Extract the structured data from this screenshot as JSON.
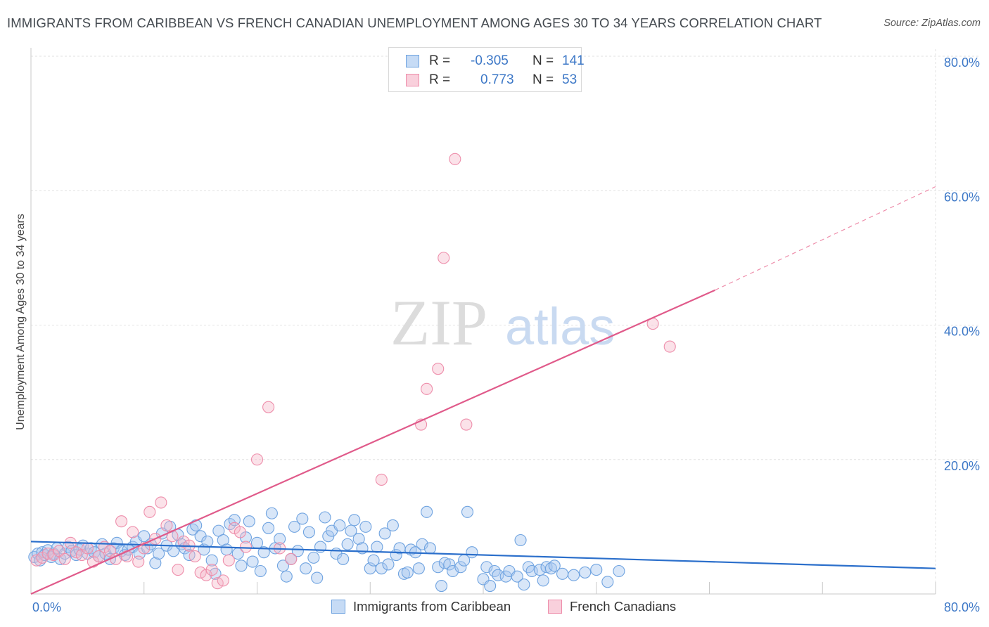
{
  "title": "IMMIGRANTS FROM CARIBBEAN VS FRENCH CANADIAN UNEMPLOYMENT AMONG AGES 30 TO 34 YEARS CORRELATION CHART",
  "source": "Source: ZipAtlas.com",
  "watermark": {
    "zip": "ZIP",
    "atlas": "atlas"
  },
  "legend": {
    "r_label": "R =",
    "n_label": "N =",
    "rows": [
      {
        "name": "Immigrants from Caribbean",
        "r": "-0.305",
        "n": "141",
        "color": "#a8c8ef"
      },
      {
        "name": "French Canadians",
        "r": "0.773",
        "n": "53",
        "color": "#f4b6c8"
      }
    ]
  },
  "chart_data": {
    "type": "scatter",
    "title": "IMMIGRANTS FROM CARIBBEAN VS FRENCH CANADIAN UNEMPLOYMENT AMONG AGES 30 TO 34 YEARS CORRELATION CHART",
    "xlabel": "",
    "ylabel": "Unemployment Among Ages 30 to 34 years",
    "xlim": [
      0,
      80
    ],
    "ylim": [
      0,
      80
    ],
    "x_tick_labels": [
      "0.0%",
      "80.0%"
    ],
    "y_tick_labels": [
      "20.0%",
      "40.0%",
      "60.0%",
      "80.0%"
    ],
    "y_ticks": [
      20,
      40,
      60,
      80
    ],
    "grid": true,
    "series": [
      {
        "name": "Immigrants from Caribbean",
        "color": "#6fa3e0",
        "trend": {
          "x0": 0,
          "y0": 7.8,
          "x1": 80,
          "y1": 3.8
        },
        "points": [
          [
            0.3,
            5.5
          ],
          [
            0.6,
            6
          ],
          [
            0.8,
            5
          ],
          [
            1,
            6.2
          ],
          [
            1.2,
            5.8
          ],
          [
            1.5,
            6.5
          ],
          [
            1.8,
            5.5
          ],
          [
            2,
            6
          ],
          [
            2.3,
            6.8
          ],
          [
            2.6,
            5.2
          ],
          [
            3,
            6
          ],
          [
            3.3,
            7
          ],
          [
            3.6,
            6.4
          ],
          [
            4,
            5.8
          ],
          [
            4.3,
            6.6
          ],
          [
            4.6,
            7.2
          ],
          [
            5,
            6
          ],
          [
            5.3,
            6.8
          ],
          [
            5.6,
            6.2
          ],
          [
            6,
            5.6
          ],
          [
            6.3,
            7.4
          ],
          [
            6.6,
            6
          ],
          [
            7,
            5.2
          ],
          [
            7.3,
            6.8
          ],
          [
            7.6,
            7.6
          ],
          [
            8,
            6.4
          ],
          [
            8.3,
            5.8
          ],
          [
            8.6,
            6.6
          ],
          [
            9,
            7
          ],
          [
            9.3,
            7.8
          ],
          [
            9.6,
            6
          ],
          [
            10,
            8.6
          ],
          [
            10.3,
            6.8
          ],
          [
            10.6,
            7.4
          ],
          [
            11,
            4.6
          ],
          [
            11.3,
            6
          ],
          [
            11.6,
            9
          ],
          [
            12,
            7.2
          ],
          [
            12.3,
            10
          ],
          [
            12.6,
            6.4
          ],
          [
            13,
            8.8
          ],
          [
            13.3,
            7.4
          ],
          [
            13.6,
            6.8
          ],
          [
            14,
            5.8
          ],
          [
            14.3,
            9.6
          ],
          [
            14.6,
            10.2
          ],
          [
            15,
            8.6
          ],
          [
            15.3,
            6.6
          ],
          [
            15.6,
            7.8
          ],
          [
            16,
            5
          ],
          [
            16.3,
            3
          ],
          [
            16.6,
            9.4
          ],
          [
            17,
            8
          ],
          [
            17.3,
            6.6
          ],
          [
            17.6,
            10.4
          ],
          [
            18,
            11
          ],
          [
            18.3,
            6
          ],
          [
            18.6,
            4.2
          ],
          [
            19,
            8.4
          ],
          [
            19.3,
            10.8
          ],
          [
            19.6,
            4.8
          ],
          [
            20,
            7.6
          ],
          [
            20.3,
            3.4
          ],
          [
            20.6,
            6.2
          ],
          [
            21,
            9.8
          ],
          [
            21.3,
            12
          ],
          [
            21.6,
            6.8
          ],
          [
            22,
            8.2
          ],
          [
            22.3,
            4.2
          ],
          [
            22.6,
            2.6
          ],
          [
            23,
            5.2
          ],
          [
            23.3,
            10
          ],
          [
            23.6,
            6.4
          ],
          [
            24,
            11.2
          ],
          [
            24.3,
            3.8
          ],
          [
            24.6,
            9.2
          ],
          [
            25,
            5.4
          ],
          [
            25.3,
            2.4
          ],
          [
            25.6,
            7
          ],
          [
            26,
            11.4
          ],
          [
            26.3,
            8.6
          ],
          [
            26.6,
            9.4
          ],
          [
            27,
            6
          ],
          [
            27.3,
            10.2
          ],
          [
            27.6,
            5.2
          ],
          [
            28,
            7.4
          ],
          [
            28.3,
            9.4
          ],
          [
            28.6,
            11
          ],
          [
            29,
            8.2
          ],
          [
            29.3,
            6.8
          ],
          [
            29.6,
            10
          ],
          [
            30,
            3.8
          ],
          [
            30.3,
            5
          ],
          [
            30.6,
            7
          ],
          [
            31,
            3.8
          ],
          [
            31.3,
            9
          ],
          [
            31.6,
            4.4
          ],
          [
            32,
            10.2
          ],
          [
            32.3,
            5.8
          ],
          [
            32.6,
            6.8
          ],
          [
            33,
            3
          ],
          [
            33.3,
            3.2
          ],
          [
            33.6,
            6.6
          ],
          [
            34,
            6.2
          ],
          [
            34.3,
            3.8
          ],
          [
            34.6,
            7.4
          ],
          [
            35,
            12.2
          ],
          [
            35.3,
            6.8
          ],
          [
            36,
            4
          ],
          [
            36.3,
            1.2
          ],
          [
            36.6,
            4.6
          ],
          [
            37,
            4.4
          ],
          [
            37.3,
            3.4
          ],
          [
            38,
            4
          ],
          [
            38.3,
            5
          ],
          [
            38.6,
            12.2
          ],
          [
            39,
            6.2
          ],
          [
            40,
            2.2
          ],
          [
            40.3,
            4
          ],
          [
            40.6,
            1.2
          ],
          [
            41,
            3.4
          ],
          [
            41.3,
            2.8
          ],
          [
            42,
            2.6
          ],
          [
            42.3,
            3.4
          ],
          [
            43,
            2.6
          ],
          [
            43.3,
            8
          ],
          [
            43.6,
            1.4
          ],
          [
            44,
            4
          ],
          [
            44.3,
            3.4
          ],
          [
            45,
            3.6
          ],
          [
            45.3,
            2
          ],
          [
            45.6,
            4
          ],
          [
            46,
            3.8
          ],
          [
            46.3,
            4.2
          ],
          [
            47,
            3
          ],
          [
            48,
            2.8
          ],
          [
            49,
            3.2
          ],
          [
            50,
            3.6
          ],
          [
            51,
            1.8
          ],
          [
            52,
            3.4
          ]
        ]
      },
      {
        "name": "French Canadians",
        "color": "#ee8eab",
        "trend": {
          "x0": 0,
          "y0": 0,
          "x1": 60.5,
          "y1": 45.2,
          "dashed_to_x": 80,
          "dashed_to_y": 60.6
        },
        "points": [
          [
            0.5,
            5
          ],
          [
            1,
            5.4
          ],
          [
            1.5,
            6
          ],
          [
            2,
            5.8
          ],
          [
            2.5,
            6.4
          ],
          [
            3,
            5.2
          ],
          [
            3.5,
            7.6
          ],
          [
            4,
            6.2
          ],
          [
            4.5,
            5.8
          ],
          [
            5,
            6.8
          ],
          [
            5.5,
            4.8
          ],
          [
            6,
            5.6
          ],
          [
            6.5,
            7
          ],
          [
            7,
            6.4
          ],
          [
            7.5,
            5.2
          ],
          [
            8,
            10.8
          ],
          [
            8.5,
            5.6
          ],
          [
            9,
            9.2
          ],
          [
            9.5,
            4.8
          ],
          [
            10,
            6.8
          ],
          [
            10.5,
            12.2
          ],
          [
            11,
            8.2
          ],
          [
            11.5,
            13.6
          ],
          [
            12,
            10.2
          ],
          [
            12.5,
            8.6
          ],
          [
            13,
            3.6
          ],
          [
            13.5,
            7.8
          ],
          [
            14,
            7.2
          ],
          [
            14.5,
            5.6
          ],
          [
            15,
            3.2
          ],
          [
            15.5,
            2.8
          ],
          [
            16,
            3.6
          ],
          [
            16.5,
            1.6
          ],
          [
            17,
            2
          ],
          [
            17.5,
            5
          ],
          [
            18,
            9.8
          ],
          [
            18.5,
            9.2
          ],
          [
            19,
            7
          ],
          [
            20,
            20
          ],
          [
            21,
            27.8
          ],
          [
            22,
            6.8
          ],
          [
            23,
            5.2
          ],
          [
            31,
            17
          ],
          [
            34.5,
            25.2
          ],
          [
            35,
            30.5
          ],
          [
            36,
            33.5
          ],
          [
            36.5,
            50
          ],
          [
            37.5,
            64.7
          ],
          [
            38.5,
            25.2
          ],
          [
            55,
            40.2
          ],
          [
            56.5,
            36.8
          ]
        ]
      }
    ]
  }
}
